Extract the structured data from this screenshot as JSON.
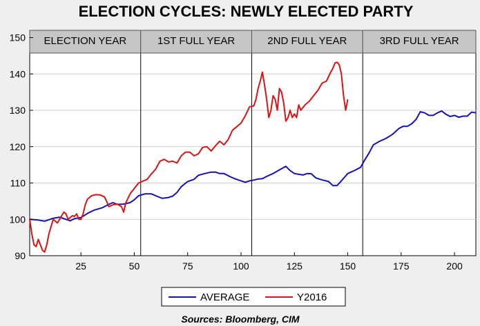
{
  "chart_data": {
    "type": "line",
    "title": "ELECTION CYCLES: NEWLY ELECTED PARTY",
    "source": "Sources:  Bloomberg, CIM",
    "xlabel": "",
    "ylabel": "",
    "xlim": [
      1,
      210
    ],
    "ylim": [
      90,
      152
    ],
    "x_ticks": [
      25,
      50,
      75,
      100,
      125,
      150,
      175,
      200
    ],
    "y_ticks": [
      90,
      100,
      110,
      120,
      130,
      140,
      150
    ],
    "grid": true,
    "legend_position": "bottom",
    "periods": [
      {
        "label": "ELECTION YEAR",
        "start": 1,
        "end": 53
      },
      {
        "label": "1ST FULL YEAR",
        "start": 53,
        "end": 105
      },
      {
        "label": "2ND FULL YEAR",
        "start": 105,
        "end": 157
      },
      {
        "label": "3RD FULL YEAR",
        "start": 157,
        "end": 210
      }
    ],
    "series": [
      {
        "name": "AVERAGE",
        "color": "#1010c0",
        "points": [
          [
            1,
            100
          ],
          [
            5,
            99.8
          ],
          [
            8,
            99.5
          ],
          [
            12,
            100.3
          ],
          [
            15,
            100.6
          ],
          [
            18,
            100
          ],
          [
            20,
            99.6
          ],
          [
            22,
            100.2
          ],
          [
            25,
            100.5
          ],
          [
            28,
            101.6
          ],
          [
            31,
            102.5
          ],
          [
            35,
            103.2
          ],
          [
            38,
            104.1
          ],
          [
            40,
            104.6
          ],
          [
            42,
            104.1
          ],
          [
            45,
            104.2
          ],
          [
            48,
            104.6
          ],
          [
            50,
            105.4
          ],
          [
            52,
            106.5
          ],
          [
            55,
            107
          ],
          [
            58,
            107
          ],
          [
            60,
            106.5
          ],
          [
            63,
            105.8
          ],
          [
            66,
            106
          ],
          [
            68,
            106.4
          ],
          [
            70,
            107.4
          ],
          [
            72,
            109
          ],
          [
            75,
            110.4
          ],
          [
            78,
            111
          ],
          [
            80,
            112.1
          ],
          [
            83,
            112.6
          ],
          [
            86,
            113
          ],
          [
            88,
            113
          ],
          [
            90,
            112.6
          ],
          [
            92,
            112.6
          ],
          [
            95,
            111.7
          ],
          [
            97,
            111.2
          ],
          [
            100,
            110.6
          ],
          [
            102,
            110.2
          ],
          [
            104,
            110.6
          ],
          [
            106,
            110.8
          ],
          [
            108,
            111.1
          ],
          [
            110,
            111.2
          ],
          [
            112,
            111.8
          ],
          [
            115,
            112.6
          ],
          [
            118,
            113.6
          ],
          [
            121,
            114.6
          ],
          [
            123,
            113.4
          ],
          [
            125,
            112.6
          ],
          [
            127,
            112.4
          ],
          [
            129,
            112.2
          ],
          [
            131,
            112.6
          ],
          [
            133,
            112.5
          ],
          [
            135,
            111.4
          ],
          [
            137,
            111
          ],
          [
            139,
            110.7
          ],
          [
            141,
            110.4
          ],
          [
            143,
            109.3
          ],
          [
            145,
            109.3
          ],
          [
            147,
            110.6
          ],
          [
            150,
            112.6
          ],
          [
            153,
            113.4
          ],
          [
            156,
            114.3
          ],
          [
            158,
            116.4
          ],
          [
            160,
            118.3
          ],
          [
            162,
            120.5
          ],
          [
            165,
            121.5
          ],
          [
            168,
            122.3
          ],
          [
            171,
            123.4
          ],
          [
            174,
            125
          ],
          [
            176,
            125.6
          ],
          [
            178,
            125.6
          ],
          [
            180,
            126.3
          ],
          [
            182,
            127.5
          ],
          [
            184,
            129.6
          ],
          [
            186,
            129.3
          ],
          [
            188,
            128.6
          ],
          [
            190,
            128.6
          ],
          [
            192,
            129.3
          ],
          [
            194,
            129.8
          ],
          [
            196,
            128.9
          ],
          [
            198,
            128.3
          ],
          [
            200,
            128.6
          ],
          [
            202,
            128.1
          ],
          [
            204,
            128.4
          ],
          [
            206,
            128.4
          ],
          [
            208,
            129.5
          ],
          [
            210,
            129.3
          ]
        ]
      },
      {
        "name": "Y2016",
        "color": "#e01010",
        "points": [
          [
            1,
            100
          ],
          [
            2,
            96
          ],
          [
            3,
            93
          ],
          [
            4,
            92.5
          ],
          [
            5,
            94.5
          ],
          [
            6,
            93
          ],
          [
            7,
            91.5
          ],
          [
            8,
            91
          ],
          [
            9,
            93
          ],
          [
            10,
            96
          ],
          [
            11,
            98
          ],
          [
            12,
            100
          ],
          [
            13,
            99.5
          ],
          [
            14,
            99
          ],
          [
            15,
            100
          ],
          [
            16,
            101
          ],
          [
            17,
            102
          ],
          [
            18,
            101.5
          ],
          [
            19,
            100
          ],
          [
            20,
            100.5
          ],
          [
            21,
            101
          ],
          [
            22,
            100.8
          ],
          [
            23,
            101.5
          ],
          [
            24,
            100
          ],
          [
            25,
            100
          ],
          [
            26,
            101.5
          ],
          [
            27,
            104
          ],
          [
            28,
            105.5
          ],
          [
            30,
            106.5
          ],
          [
            32,
            106.8
          ],
          [
            34,
            106.7
          ],
          [
            36,
            106.2
          ],
          [
            37,
            105
          ],
          [
            38,
            103.5
          ],
          [
            40,
            104
          ],
          [
            42,
            104.2
          ],
          [
            44,
            103.5
          ],
          [
            45,
            102
          ],
          [
            46,
            104.5
          ],
          [
            48,
            107
          ],
          [
            50,
            108.5
          ],
          [
            52,
            110
          ],
          [
            54,
            110.5
          ],
          [
            56,
            111
          ],
          [
            58,
            112.5
          ],
          [
            60,
            113.8
          ],
          [
            62,
            116
          ],
          [
            64,
            116.5
          ],
          [
            66,
            115.8
          ],
          [
            68,
            116
          ],
          [
            70,
            115.5
          ],
          [
            72,
            117.5
          ],
          [
            74,
            118.5
          ],
          [
            76,
            118.5
          ],
          [
            78,
            117.5
          ],
          [
            80,
            118
          ],
          [
            82,
            119.8
          ],
          [
            84,
            120
          ],
          [
            86,
            118.8
          ],
          [
            88,
            120.2
          ],
          [
            90,
            121.5
          ],
          [
            92,
            120.5
          ],
          [
            94,
            122
          ],
          [
            96,
            124.5
          ],
          [
            98,
            125.5
          ],
          [
            100,
            126.5
          ],
          [
            102,
            128.5
          ],
          [
            104,
            131
          ],
          [
            106,
            131.2
          ],
          [
            107,
            133
          ],
          [
            108,
            136
          ],
          [
            109,
            138
          ],
          [
            110,
            140.5
          ],
          [
            111,
            137
          ],
          [
            112,
            133
          ],
          [
            113,
            128
          ],
          [
            114,
            130
          ],
          [
            115,
            134
          ],
          [
            116,
            133
          ],
          [
            117,
            130
          ],
          [
            118,
            136
          ],
          [
            119,
            135
          ],
          [
            120,
            132
          ],
          [
            121,
            127
          ],
          [
            122,
            128
          ],
          [
            123,
            130
          ],
          [
            124,
            128
          ],
          [
            125,
            129
          ],
          [
            126,
            128
          ],
          [
            127,
            131.5
          ],
          [
            128,
            130
          ],
          [
            130,
            131.5
          ],
          [
            132,
            132.5
          ],
          [
            134,
            134
          ],
          [
            136,
            135.5
          ],
          [
            138,
            137.5
          ],
          [
            140,
            138
          ],
          [
            142,
            140.5
          ],
          [
            143,
            141.5
          ],
          [
            144,
            143
          ],
          [
            145,
            143.2
          ],
          [
            146,
            142.5
          ],
          [
            147,
            140
          ],
          [
            148,
            134
          ],
          [
            149,
            130
          ],
          [
            150,
            133
          ]
        ]
      }
    ]
  }
}
